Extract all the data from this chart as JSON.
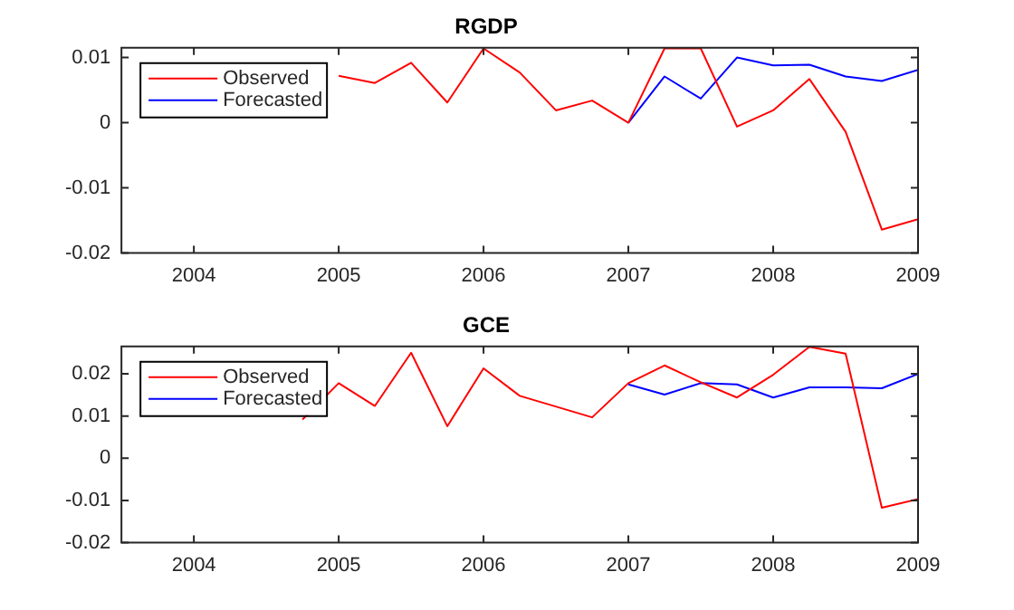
{
  "chart_data": [
    {
      "type": "line",
      "title": "RGDP",
      "xlim": [
        2003.5,
        2009
      ],
      "xticks": [
        2004,
        2005,
        2006,
        2007,
        2008,
        2009
      ],
      "ylim": [
        -0.02,
        0.0115
      ],
      "yticks": [
        -0.02,
        -0.01,
        0,
        0.01
      ],
      "grid": false,
      "legend": "top left",
      "marker": "none",
      "series": [
        {
          "name": "Observed",
          "color": "#ff0000",
          "x": [
            2005,
            2005.25,
            2005.5,
            2005.75,
            2006,
            2006.25,
            2006.5,
            2006.75,
            2007,
            2007.25,
            2007.5,
            2007.75,
            2008,
            2008.25,
            2008.5,
            2008.75,
            2009
          ],
          "values": [
            0.0072,
            0.0061,
            0.0092,
            0.0031,
            0.0114,
            0.0077,
            0.0019,
            0.0034,
            0,
            0.0114,
            0.0114,
            -0.0006,
            0.0019,
            0.0067,
            -0.0014,
            -0.0164,
            -0.0148
          ]
        },
        {
          "name": "Forecasted",
          "color": "#0000ff",
          "x": [
            2007,
            2007.25,
            2007.5,
            2007.75,
            2008,
            2008.25,
            2008.5,
            2008.75,
            2009
          ],
          "values": [
            0,
            0.0071,
            0.0037,
            0.01,
            0.0088,
            0.0089,
            0.0071,
            0.0064,
            0.0081
          ]
        }
      ]
    },
    {
      "type": "line",
      "title": "GCE",
      "xlim": [
        2003.5,
        2009
      ],
      "xticks": [
        2004,
        2005,
        2006,
        2007,
        2008,
        2009
      ],
      "ylim": [
        -0.02,
        0.0265
      ],
      "yticks": [
        -0.02,
        -0.01,
        0,
        0.01,
        0.02
      ],
      "grid": false,
      "legend": "top left",
      "marker": "none",
      "series": [
        {
          "name": "Observed",
          "color": "#ff0000",
          "x": [
            2004.75,
            2005,
            2005.25,
            2005.5,
            2005.75,
            2006,
            2006.25,
            2006.75,
            2007,
            2007.25,
            2007.5,
            2007.75,
            2008,
            2008.25,
            2008.5,
            2008.75,
            2009
          ],
          "values": [
            0.0092,
            0.0178,
            0.0124,
            0.025,
            0.0076,
            0.0213,
            0.0148,
            0.0097,
            0.0178,
            0.022,
            0.018,
            0.0144,
            0.0198,
            0.0264,
            0.0248,
            -0.0117,
            -0.0097
          ]
        },
        {
          "name": "Forecasted",
          "color": "#0000ff",
          "x": [
            2007,
            2007.25,
            2007.5,
            2007.75,
            2008,
            2008.25,
            2008.5,
            2008.75,
            2009
          ],
          "values": [
            0.0175,
            0.0151,
            0.0178,
            0.0175,
            0.0144,
            0.0168,
            0.0168,
            0.0166,
            0.02
          ]
        }
      ]
    }
  ]
}
